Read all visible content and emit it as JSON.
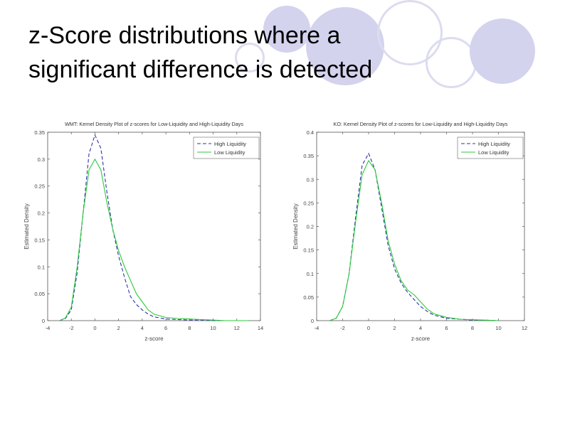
{
  "slide": {
    "title_line1": "z-Score distributions where a",
    "title_line2": "significant difference is detected"
  },
  "colors": {
    "high_liquidity": "#2a35a8",
    "low_liquidity": "#2bc93a",
    "decor_circle": "#d3d3ee"
  },
  "chart_data": [
    {
      "type": "line",
      "title": "WMT: Kernel Density Plot of z-scores for Low-Liquidity and High-Liquidity Days",
      "xlabel": "z-score",
      "ylabel": "Estimated Density",
      "xlim": [
        -4,
        14
      ],
      "ylim": [
        0,
        0.35
      ],
      "xticks": [
        -4,
        -2,
        0,
        2,
        4,
        6,
        8,
        10,
        12,
        14
      ],
      "yticks": [
        0,
        0.05,
        0.1,
        0.15,
        0.2,
        0.25,
        0.3,
        0.35
      ],
      "ytick_labels": [
        "0",
        "0.05",
        "0.1",
        "0.15",
        "0.2",
        "0.25",
        "0.3",
        "0.35"
      ],
      "legend_position": "top-right",
      "grid": false,
      "series": [
        {
          "name": "High Liquidity",
          "style": "dashed",
          "x": [
            -3,
            -2.5,
            -2,
            -1.5,
            -1,
            -0.5,
            0,
            0.5,
            1,
            1.5,
            2,
            2.5,
            3,
            3.5,
            4,
            4.5,
            5,
            6,
            7,
            8,
            9,
            10,
            11,
            12,
            13
          ],
          "y": [
            0,
            0.004,
            0.02,
            0.09,
            0.2,
            0.31,
            0.345,
            0.32,
            0.24,
            0.17,
            0.12,
            0.08,
            0.045,
            0.03,
            0.02,
            0.012,
            0.007,
            0.003,
            0.002,
            0.001,
            0.001,
            0,
            0,
            0,
            0
          ]
        },
        {
          "name": "Low Liquidity",
          "style": "solid",
          "x": [
            -3,
            -2.5,
            -2,
            -1.5,
            -1,
            -0.5,
            0,
            0.5,
            1,
            1.5,
            2,
            2.5,
            3,
            3.5,
            4,
            4.5,
            5,
            6,
            7,
            8,
            9,
            10,
            11,
            12,
            13
          ],
          "y": [
            0,
            0.005,
            0.025,
            0.1,
            0.2,
            0.28,
            0.3,
            0.28,
            0.22,
            0.17,
            0.13,
            0.1,
            0.075,
            0.05,
            0.035,
            0.02,
            0.012,
            0.006,
            0.004,
            0.003,
            0.002,
            0.001,
            0,
            0,
            0
          ]
        }
      ]
    },
    {
      "type": "line",
      "title": "KO: Kernel Density Plot of z-scores for Low-Liquidity and High-Liquidity Days",
      "xlabel": "z-score",
      "ylabel": "Estimated Density",
      "xlim": [
        -4,
        12
      ],
      "ylim": [
        0,
        0.4
      ],
      "xticks": [
        -4,
        -2,
        0,
        2,
        4,
        6,
        8,
        10,
        12
      ],
      "yticks": [
        0,
        0.05,
        0.1,
        0.15,
        0.2,
        0.25,
        0.3,
        0.35,
        0.4
      ],
      "ytick_labels": [
        "0",
        "0.05",
        "0.1",
        "0.15",
        "0.2",
        "0.25",
        "0.3",
        "0.35",
        "0.4"
      ],
      "legend_position": "top-right",
      "grid": false,
      "series": [
        {
          "name": "High Liquidity",
          "style": "dashed",
          "x": [
            -3,
            -2.5,
            -2,
            -1.5,
            -1,
            -0.5,
            0,
            0.5,
            1,
            1.5,
            2,
            2.5,
            3,
            3.5,
            4,
            4.5,
            5,
            6,
            7,
            8,
            9,
            10
          ],
          "y": [
            0,
            0.005,
            0.03,
            0.1,
            0.22,
            0.33,
            0.355,
            0.32,
            0.24,
            0.16,
            0.11,
            0.08,
            0.06,
            0.045,
            0.03,
            0.02,
            0.012,
            0.005,
            0.003,
            0.001,
            0.001,
            0
          ]
        },
        {
          "name": "Low Liquidity",
          "style": "solid",
          "x": [
            -3,
            -2.5,
            -2,
            -1.5,
            -1,
            -0.5,
            0,
            0.5,
            1,
            1.5,
            2,
            2.5,
            3,
            3.5,
            4,
            4.5,
            5,
            6,
            7,
            8,
            9,
            10
          ],
          "y": [
            0,
            0.005,
            0.03,
            0.1,
            0.21,
            0.31,
            0.34,
            0.32,
            0.25,
            0.17,
            0.12,
            0.085,
            0.065,
            0.055,
            0.04,
            0.025,
            0.015,
            0.007,
            0.003,
            0.002,
            0.001,
            0
          ]
        }
      ]
    }
  ]
}
